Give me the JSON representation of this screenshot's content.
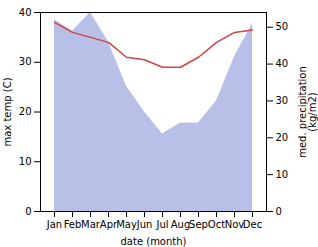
{
  "chart_data": {
    "type": "line",
    "categories": [
      "Jan",
      "Feb",
      "Mar",
      "Apr",
      "May",
      "Jun",
      "Jul",
      "Aug",
      "Sep",
      "Oct",
      "Nov",
      "Dec"
    ],
    "xlabel": "date (month)",
    "ylabel": "max temp (C)",
    "y2label": "med. precipitation\n(kg/m2)",
    "ylim": [
      0,
      40
    ],
    "yticks": [
      0,
      10,
      20,
      30,
      40
    ],
    "y2lim": [
      0,
      54
    ],
    "y2ticks": [
      0,
      10,
      20,
      30,
      40,
      50
    ],
    "grid": false,
    "series": [
      {
        "type": "area",
        "axis": "y2",
        "color": "#b8c0e8",
        "values": [
          52,
          49,
          54,
          46,
          34,
          27,
          21,
          24,
          24,
          30,
          42,
          51
        ]
      },
      {
        "type": "line",
        "color": "#cc4444",
        "values": [
          38,
          36,
          35,
          34,
          31,
          30.5,
          29,
          29,
          31,
          34,
          36,
          36.5
        ]
      }
    ]
  }
}
